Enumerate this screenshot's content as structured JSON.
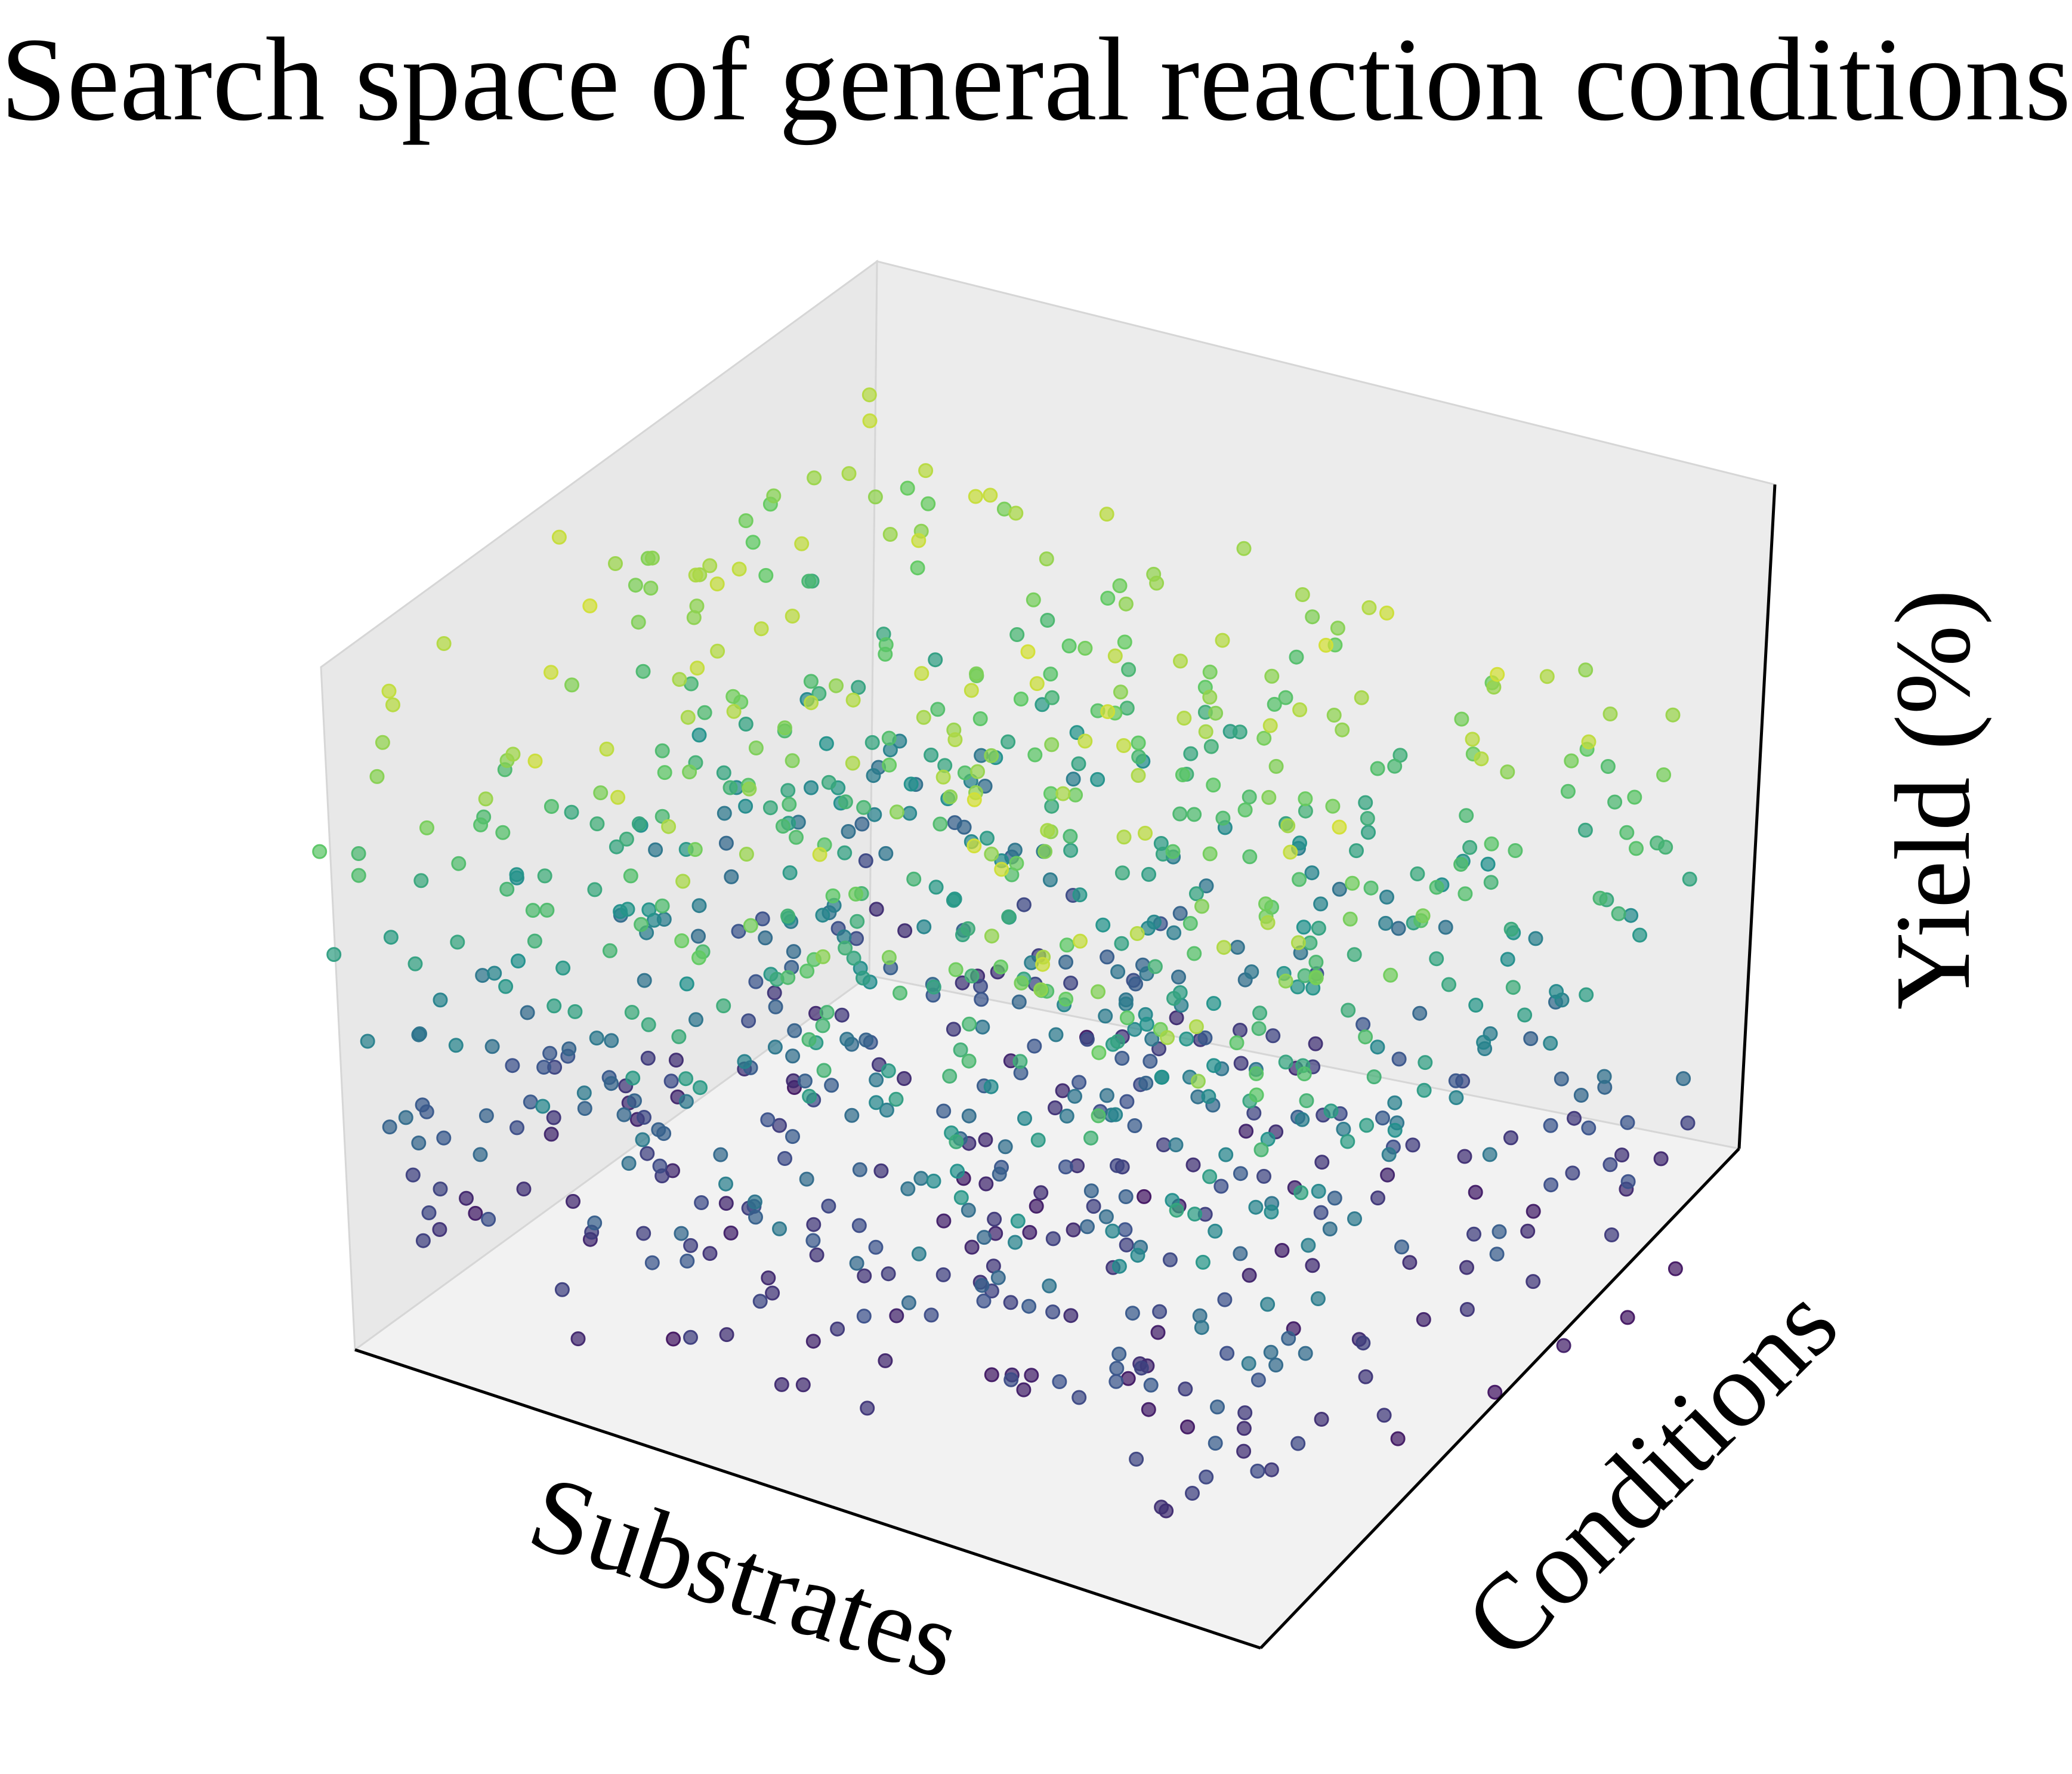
{
  "chart_data": {
    "type": "scatter",
    "projection": "3d",
    "title": "Search space of general reaction conditions",
    "xlabel": "Substrates",
    "ylabel": "Conditions",
    "zlabel": "Yield (%)",
    "ticks": "none",
    "grid": false,
    "legend": "none",
    "colormap": "viridis",
    "color_encodes": "Yield (%)",
    "point_count_estimate": 1000,
    "points": []
  },
  "colors": {
    "pane_back": "#ececec",
    "pane_side": "#e8e8e8",
    "pane_floor": "#f2f2f2",
    "pane_edge": "#d6d6d6",
    "axis_line": "#000000",
    "viridis_low": "#440154",
    "viridis_mid": "#21918c",
    "viridis_high": "#fde725"
  }
}
